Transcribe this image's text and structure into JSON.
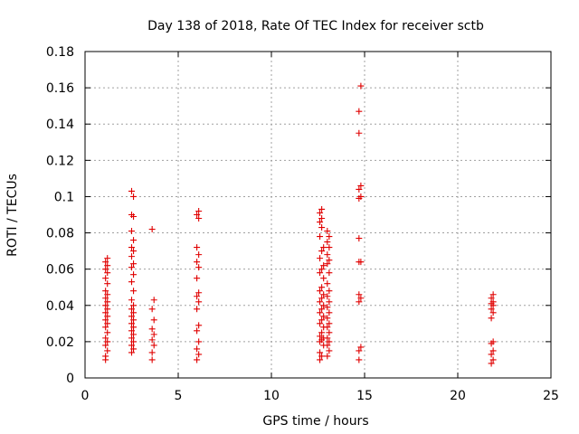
{
  "chart_data": {
    "type": "scatter",
    "title": "Day 138 of 2018, Rate Of TEC Index for receiver sctb",
    "xlabel": "GPS time / hours",
    "ylabel": "ROTI / TECUs",
    "xlim": [
      0,
      25
    ],
    "ylim": [
      0,
      0.18
    ],
    "xticks": [
      0,
      5,
      10,
      15,
      20,
      25
    ],
    "yticks": [
      0,
      0.02,
      0.04,
      0.06,
      0.08,
      0.1,
      0.12,
      0.14,
      0.16,
      0.18
    ],
    "xtick_labels": [
      "0",
      "5",
      "10",
      "15",
      "20",
      "25"
    ],
    "ytick_labels": [
      "0",
      "0.02",
      "0.04",
      "0.06",
      "0.08",
      "0.1",
      "0.12",
      "0.14",
      "0.16",
      "0.18"
    ],
    "marker": "+",
    "color": "#e00000",
    "grid": true,
    "series": [
      {
        "name": "ROTI",
        "points": [
          [
            1.1,
            0.01
          ],
          [
            1.1,
            0.012
          ],
          [
            1.2,
            0.015
          ],
          [
            1.1,
            0.018
          ],
          [
            1.2,
            0.02
          ],
          [
            1.1,
            0.022
          ],
          [
            1.2,
            0.025
          ],
          [
            1.1,
            0.028
          ],
          [
            1.2,
            0.03
          ],
          [
            1.1,
            0.032
          ],
          [
            1.2,
            0.034
          ],
          [
            1.1,
            0.036
          ],
          [
            1.2,
            0.038
          ],
          [
            1.1,
            0.04
          ],
          [
            1.2,
            0.042
          ],
          [
            1.1,
            0.044
          ],
          [
            1.2,
            0.046
          ],
          [
            1.1,
            0.048
          ],
          [
            1.2,
            0.052
          ],
          [
            1.1,
            0.055
          ],
          [
            1.2,
            0.058
          ],
          [
            1.1,
            0.06
          ],
          [
            1.2,
            0.062
          ],
          [
            1.1,
            0.064
          ],
          [
            1.2,
            0.066
          ],
          [
            2.5,
            0.014
          ],
          [
            2.6,
            0.016
          ],
          [
            2.5,
            0.018
          ],
          [
            2.6,
            0.02
          ],
          [
            2.5,
            0.022
          ],
          [
            2.6,
            0.024
          ],
          [
            2.5,
            0.026
          ],
          [
            2.6,
            0.028
          ],
          [
            2.5,
            0.03
          ],
          [
            2.6,
            0.032
          ],
          [
            2.5,
            0.034
          ],
          [
            2.6,
            0.036
          ],
          [
            2.5,
            0.038
          ],
          [
            2.6,
            0.04
          ],
          [
            2.5,
            0.043
          ],
          [
            2.6,
            0.048
          ],
          [
            2.5,
            0.053
          ],
          [
            2.6,
            0.057
          ],
          [
            2.5,
            0.061
          ],
          [
            2.6,
            0.063
          ],
          [
            2.5,
            0.067
          ],
          [
            2.6,
            0.07
          ],
          [
            2.5,
            0.072
          ],
          [
            2.6,
            0.076
          ],
          [
            2.5,
            0.081
          ],
          [
            2.6,
            0.089
          ],
          [
            2.5,
            0.09
          ],
          [
            2.6,
            0.1
          ],
          [
            2.5,
            0.103
          ],
          [
            3.6,
            0.01
          ],
          [
            3.6,
            0.014
          ],
          [
            3.7,
            0.018
          ],
          [
            3.6,
            0.021
          ],
          [
            3.7,
            0.024
          ],
          [
            3.6,
            0.027
          ],
          [
            3.7,
            0.032
          ],
          [
            3.6,
            0.038
          ],
          [
            3.7,
            0.043
          ],
          [
            3.6,
            0.082
          ],
          [
            6.0,
            0.01
          ],
          [
            6.1,
            0.013
          ],
          [
            6.0,
            0.016
          ],
          [
            6.1,
            0.02
          ],
          [
            6.0,
            0.026
          ],
          [
            6.1,
            0.029
          ],
          [
            6.0,
            0.038
          ],
          [
            6.1,
            0.042
          ],
          [
            6.0,
            0.045
          ],
          [
            6.1,
            0.047
          ],
          [
            6.0,
            0.055
          ],
          [
            6.1,
            0.061
          ],
          [
            6.0,
            0.064
          ],
          [
            6.1,
            0.068
          ],
          [
            6.0,
            0.072
          ],
          [
            6.1,
            0.088
          ],
          [
            6.0,
            0.09
          ],
          [
            6.1,
            0.092
          ],
          [
            12.6,
            0.01
          ],
          [
            12.7,
            0.012
          ],
          [
            12.6,
            0.014
          ],
          [
            12.8,
            0.018
          ],
          [
            12.6,
            0.02
          ],
          [
            12.7,
            0.021
          ],
          [
            12.8,
            0.022
          ],
          [
            12.6,
            0.023
          ],
          [
            12.7,
            0.025
          ],
          [
            12.8,
            0.028
          ],
          [
            12.6,
            0.03
          ],
          [
            12.7,
            0.032
          ],
          [
            12.8,
            0.034
          ],
          [
            12.6,
            0.036
          ],
          [
            12.7,
            0.038
          ],
          [
            12.8,
            0.04
          ],
          [
            12.6,
            0.042
          ],
          [
            12.7,
            0.044
          ],
          [
            12.8,
            0.046
          ],
          [
            12.6,
            0.048
          ],
          [
            12.7,
            0.05
          ],
          [
            12.8,
            0.055
          ],
          [
            12.6,
            0.058
          ],
          [
            12.7,
            0.06
          ],
          [
            12.8,
            0.062
          ],
          [
            12.6,
            0.066
          ],
          [
            12.7,
            0.07
          ],
          [
            12.8,
            0.072
          ],
          [
            12.6,
            0.078
          ],
          [
            12.7,
            0.083
          ],
          [
            12.6,
            0.086
          ],
          [
            12.7,
            0.088
          ],
          [
            12.6,
            0.091
          ],
          [
            12.7,
            0.093
          ],
          [
            13.0,
            0.012
          ],
          [
            13.1,
            0.015
          ],
          [
            13.0,
            0.018
          ],
          [
            13.1,
            0.02
          ],
          [
            13.0,
            0.022
          ],
          [
            13.1,
            0.025
          ],
          [
            13.0,
            0.028
          ],
          [
            13.1,
            0.03
          ],
          [
            13.0,
            0.033
          ],
          [
            13.1,
            0.036
          ],
          [
            13.0,
            0.039
          ],
          [
            13.1,
            0.042
          ],
          [
            13.0,
            0.045
          ],
          [
            13.1,
            0.048
          ],
          [
            13.0,
            0.052
          ],
          [
            13.1,
            0.058
          ],
          [
            13.0,
            0.063
          ],
          [
            13.1,
            0.065
          ],
          [
            13.0,
            0.068
          ],
          [
            13.1,
            0.072
          ],
          [
            13.0,
            0.075
          ],
          [
            13.1,
            0.078
          ],
          [
            13.0,
            0.081
          ],
          [
            14.7,
            0.01
          ],
          [
            14.7,
            0.015
          ],
          [
            14.8,
            0.017
          ],
          [
            14.7,
            0.042
          ],
          [
            14.8,
            0.044
          ],
          [
            14.7,
            0.046
          ],
          [
            14.7,
            0.064
          ],
          [
            14.8,
            0.064
          ],
          [
            14.7,
            0.077
          ],
          [
            14.7,
            0.099
          ],
          [
            14.8,
            0.1
          ],
          [
            14.7,
            0.104
          ],
          [
            14.8,
            0.106
          ],
          [
            14.7,
            0.135
          ],
          [
            14.7,
            0.147
          ],
          [
            14.8,
            0.161
          ],
          [
            21.8,
            0.008
          ],
          [
            21.9,
            0.01
          ],
          [
            21.8,
            0.013
          ],
          [
            21.9,
            0.015
          ],
          [
            21.8,
            0.019
          ],
          [
            21.9,
            0.02
          ],
          [
            21.8,
            0.033
          ],
          [
            21.9,
            0.036
          ],
          [
            21.8,
            0.038
          ],
          [
            21.9,
            0.04
          ],
          [
            21.8,
            0.041
          ],
          [
            21.9,
            0.042
          ],
          [
            21.8,
            0.044
          ],
          [
            21.9,
            0.046
          ]
        ]
      }
    ]
  }
}
